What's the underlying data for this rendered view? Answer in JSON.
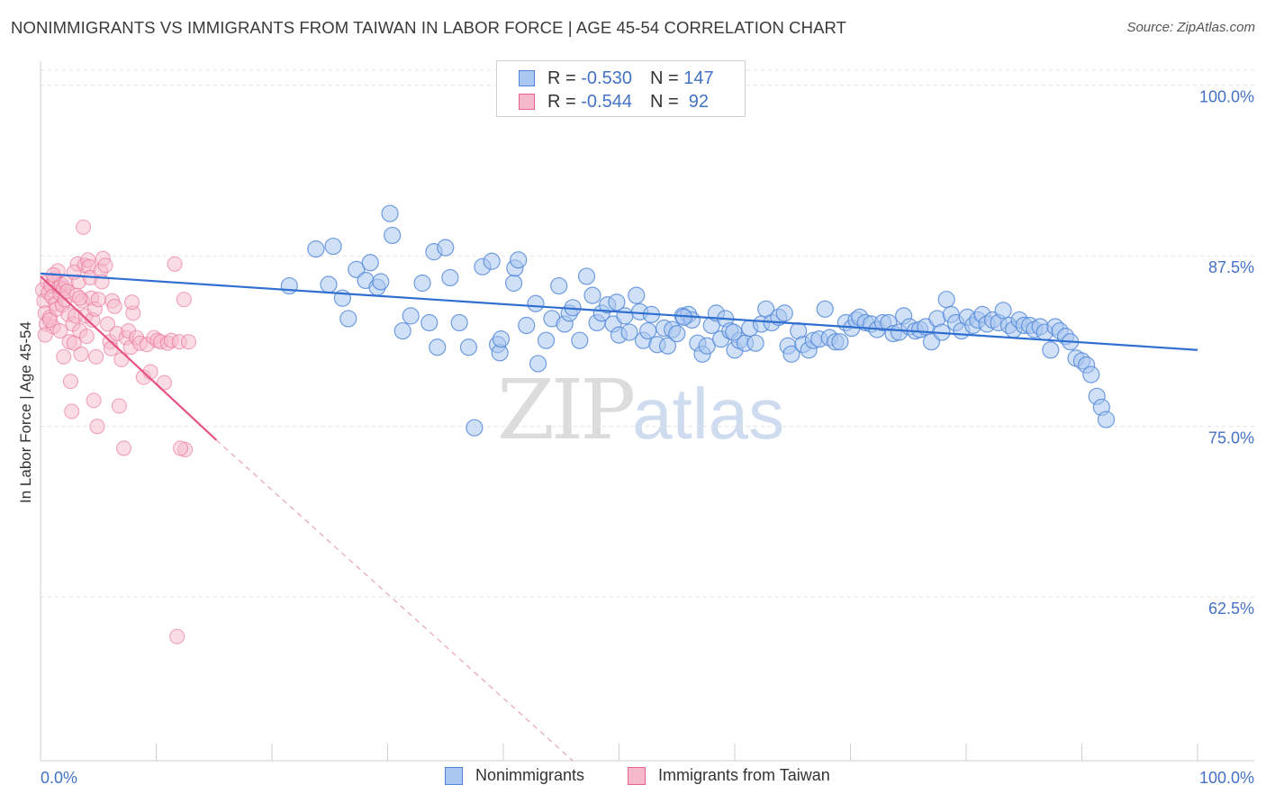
{
  "title": "NONIMMIGRANTS VS IMMIGRANTS FROM TAIWAN IN LABOR FORCE | AGE 45-54 CORRELATION CHART",
  "source": "Source: ZipAtlas.com",
  "watermark": {
    "zip": "ZIP",
    "atlas": "atlas"
  },
  "legend": {
    "rows": [
      {
        "r_label": "R = ",
        "r_value": "-0.530",
        "n_label": "N = ",
        "n_value": "147"
      },
      {
        "r_label": "R = ",
        "r_value": "-0.544",
        "n_label": "N = ",
        "n_value": " 92"
      }
    ]
  },
  "bottom_legend": {
    "series1": "Nonimmigrants",
    "series2": "Immigrants from Taiwan"
  },
  "chart_data": {
    "type": "scatter",
    "ylabel": "In Labor Force | Age 45-54",
    "xlabel": "",
    "xlim": [
      0,
      100
    ],
    "ylim": [
      50.5,
      101.5
    ],
    "y_ticks": [
      {
        "value": 100.0,
        "label": "100.0%"
      },
      {
        "value": 87.5,
        "label": "87.5%"
      },
      {
        "value": 75.0,
        "label": "75.0%"
      },
      {
        "value": 62.5,
        "label": "62.5%"
      }
    ],
    "x_tick_labels": {
      "left": "0.0%",
      "right": "100.0%"
    },
    "colors": {
      "blue": "#4f86d9",
      "blue_fill": "#aac7ef",
      "pink": "#e8648e",
      "pink_fill": "#f6b9cc"
    },
    "series": [
      {
        "name": "Nonimmigrants",
        "color": "#4f86d9",
        "r": -0.53,
        "n": 147,
        "trend": {
          "x0": 0,
          "y0": 86.2,
          "x1": 100,
          "y1": 80.6
        },
        "points": [
          [
            21.5,
            85.3
          ],
          [
            23.8,
            88.0
          ],
          [
            25.3,
            88.2
          ],
          [
            24.9,
            85.4
          ],
          [
            26.1,
            84.4
          ],
          [
            26.6,
            82.9
          ],
          [
            27.3,
            86.5
          ],
          [
            28.1,
            85.7
          ],
          [
            28.5,
            87.0
          ],
          [
            29.1,
            85.2
          ],
          [
            29.4,
            85.6
          ],
          [
            30.2,
            90.6
          ],
          [
            30.4,
            89.0
          ],
          [
            31.3,
            82.0
          ],
          [
            32.0,
            83.1
          ],
          [
            33.0,
            85.5
          ],
          [
            33.6,
            82.6
          ],
          [
            34.0,
            87.8
          ],
          [
            34.3,
            80.8
          ],
          [
            35.0,
            88.1
          ],
          [
            35.4,
            85.9
          ],
          [
            37.0,
            80.8
          ],
          [
            37.5,
            74.9
          ],
          [
            38.2,
            86.7
          ],
          [
            39.0,
            87.1
          ],
          [
            39.5,
            81.0
          ],
          [
            39.7,
            80.4
          ],
          [
            39.8,
            81.4
          ],
          [
            40.9,
            85.5
          ],
          [
            41.0,
            86.6
          ],
          [
            41.3,
            87.2
          ],
          [
            42.0,
            82.4
          ],
          [
            43.0,
            79.6
          ],
          [
            43.7,
            81.3
          ],
          [
            44.2,
            82.9
          ],
          [
            44.8,
            85.3
          ],
          [
            45.3,
            82.5
          ],
          [
            45.7,
            83.3
          ],
          [
            46.0,
            83.7
          ],
          [
            46.6,
            81.3
          ],
          [
            47.2,
            86.0
          ],
          [
            47.7,
            84.6
          ],
          [
            48.1,
            82.6
          ],
          [
            48.5,
            83.3
          ],
          [
            49.0,
            83.9
          ],
          [
            49.5,
            82.5
          ],
          [
            50.0,
            81.7
          ],
          [
            50.5,
            83.1
          ],
          [
            50.9,
            81.9
          ],
          [
            51.5,
            84.6
          ],
          [
            51.8,
            83.4
          ],
          [
            52.1,
            81.3
          ],
          [
            52.5,
            82.0
          ],
          [
            52.8,
            83.2
          ],
          [
            53.3,
            81.0
          ],
          [
            53.9,
            82.2
          ],
          [
            54.2,
            80.9
          ],
          [
            54.6,
            82.1
          ],
          [
            55.0,
            81.8
          ],
          [
            55.5,
            83.1
          ],
          [
            56.0,
            83.2
          ],
          [
            56.3,
            82.8
          ],
          [
            56.8,
            81.1
          ],
          [
            57.2,
            80.3
          ],
          [
            57.6,
            80.9
          ],
          [
            58.0,
            82.4
          ],
          [
            58.4,
            83.3
          ],
          [
            58.8,
            81.4
          ],
          [
            59.2,
            82.9
          ],
          [
            59.6,
            82.0
          ],
          [
            60.0,
            80.6
          ],
          [
            60.4,
            81.3
          ],
          [
            60.9,
            81.1
          ],
          [
            61.3,
            82.2
          ],
          [
            61.8,
            81.1
          ],
          [
            62.3,
            82.5
          ],
          [
            62.7,
            83.6
          ],
          [
            63.2,
            82.6
          ],
          [
            63.8,
            83.0
          ],
          [
            64.3,
            83.3
          ],
          [
            64.6,
            80.9
          ],
          [
            64.9,
            80.3
          ],
          [
            65.5,
            82.0
          ],
          [
            65.9,
            81.0
          ],
          [
            66.4,
            80.6
          ],
          [
            66.8,
            81.3
          ],
          [
            67.3,
            81.4
          ],
          [
            67.8,
            83.6
          ],
          [
            68.2,
            81.5
          ],
          [
            68.7,
            81.2
          ],
          [
            69.1,
            81.2
          ],
          [
            69.6,
            82.6
          ],
          [
            70.1,
            82.2
          ],
          [
            70.5,
            82.8
          ],
          [
            70.8,
            83.0
          ],
          [
            71.3,
            82.6
          ],
          [
            71.8,
            82.5
          ],
          [
            72.3,
            82.1
          ],
          [
            72.8,
            82.6
          ],
          [
            73.3,
            82.6
          ],
          [
            73.7,
            81.8
          ],
          [
            74.2,
            81.9
          ],
          [
            74.6,
            83.1
          ],
          [
            75.1,
            82.3
          ],
          [
            75.6,
            82.0
          ],
          [
            76.0,
            82.1
          ],
          [
            76.5,
            82.3
          ],
          [
            77.0,
            81.2
          ],
          [
            77.5,
            82.9
          ],
          [
            77.9,
            81.9
          ],
          [
            78.3,
            84.3
          ],
          [
            78.7,
            83.2
          ],
          [
            79.1,
            82.6
          ],
          [
            79.6,
            82.0
          ],
          [
            80.1,
            83.0
          ],
          [
            80.6,
            82.4
          ],
          [
            81.0,
            82.8
          ],
          [
            81.4,
            83.2
          ],
          [
            81.8,
            82.5
          ],
          [
            82.3,
            82.8
          ],
          [
            82.8,
            82.6
          ],
          [
            83.2,
            83.5
          ],
          [
            83.7,
            82.4
          ],
          [
            84.1,
            82.1
          ],
          [
            84.6,
            82.8
          ],
          [
            85.0,
            82.4
          ],
          [
            85.5,
            82.4
          ],
          [
            85.9,
            82.1
          ],
          [
            86.4,
            82.3
          ],
          [
            86.8,
            81.9
          ],
          [
            87.3,
            80.6
          ],
          [
            87.7,
            82.3
          ],
          [
            88.1,
            82.0
          ],
          [
            88.6,
            81.6
          ],
          [
            89.0,
            81.2
          ],
          [
            89.5,
            80.0
          ],
          [
            90.0,
            79.8
          ],
          [
            90.4,
            79.5
          ],
          [
            90.8,
            78.8
          ],
          [
            91.3,
            77.2
          ],
          [
            91.7,
            76.4
          ],
          [
            92.1,
            75.5
          ],
          [
            55.6,
            83.0
          ],
          [
            59.9,
            81.9
          ],
          [
            42.8,
            84.0
          ],
          [
            49.8,
            84.1
          ],
          [
            36.2,
            82.6
          ]
        ]
      },
      {
        "name": "Immigrants from Taiwan",
        "color": "#e8648e",
        "r": -0.544,
        "n": 92,
        "trend_solid": {
          "x0": 0,
          "y0": 86.0,
          "x1": 15.2,
          "y1": 74.0
        },
        "trend_dashed": {
          "x0": 15.2,
          "y0": 74.0,
          "x1": 46.0,
          "y1": 50.5
        },
        "points": [
          [
            0.2,
            85.0
          ],
          [
            0.3,
            84.2
          ],
          [
            0.4,
            83.3
          ],
          [
            0.5,
            82.5
          ],
          [
            0.6,
            85.6
          ],
          [
            0.7,
            84.8
          ],
          [
            0.8,
            83.0
          ],
          [
            0.9,
            85.3
          ],
          [
            1.0,
            84.5
          ],
          [
            1.1,
            82.3
          ],
          [
            1.2,
            85.8
          ],
          [
            1.3,
            84.0
          ],
          [
            1.4,
            83.6
          ],
          [
            1.5,
            86.4
          ],
          [
            1.6,
            85.2
          ],
          [
            1.7,
            84.7
          ],
          [
            1.8,
            85.4
          ],
          [
            1.9,
            83.9
          ],
          [
            2.0,
            85.1
          ],
          [
            2.1,
            84.3
          ],
          [
            2.2,
            85.5
          ],
          [
            2.3,
            84.9
          ],
          [
            2.4,
            83.2
          ],
          [
            2.5,
            81.2
          ],
          [
            2.6,
            78.3
          ],
          [
            2.7,
            76.1
          ],
          [
            2.8,
            82.5
          ],
          [
            2.9,
            81.1
          ],
          [
            3.0,
            83.1
          ],
          [
            3.1,
            84.6
          ],
          [
            3.2,
            86.9
          ],
          [
            3.3,
            85.6
          ],
          [
            3.4,
            82.0
          ],
          [
            3.5,
            80.3
          ],
          [
            3.6,
            84.2
          ],
          [
            3.7,
            89.6
          ],
          [
            3.8,
            86.8
          ],
          [
            3.9,
            83.1
          ],
          [
            4.0,
            81.6
          ],
          [
            4.1,
            87.2
          ],
          [
            4.2,
            86.7
          ],
          [
            4.3,
            85.9
          ],
          [
            4.4,
            84.4
          ],
          [
            4.5,
            82.8
          ],
          [
            4.6,
            76.9
          ],
          [
            4.7,
            83.6
          ],
          [
            4.8,
            80.1
          ],
          [
            4.9,
            75.0
          ],
          [
            5.0,
            84.3
          ],
          [
            5.2,
            86.4
          ],
          [
            5.4,
            87.3
          ],
          [
            5.6,
            86.8
          ],
          [
            5.8,
            82.5
          ],
          [
            6.0,
            81.2
          ],
          [
            6.2,
            84.2
          ],
          [
            6.4,
            83.8
          ],
          [
            6.6,
            81.8
          ],
          [
            6.8,
            76.5
          ],
          [
            7.0,
            79.9
          ],
          [
            7.2,
            73.4
          ],
          [
            7.4,
            81.5
          ],
          [
            7.6,
            82.0
          ],
          [
            7.8,
            80.8
          ],
          [
            8.0,
            83.3
          ],
          [
            8.3,
            81.5
          ],
          [
            8.6,
            81.1
          ],
          [
            8.9,
            78.6
          ],
          [
            9.2,
            81.0
          ],
          [
            9.5,
            79.0
          ],
          [
            9.8,
            81.5
          ],
          [
            10.1,
            81.3
          ],
          [
            10.4,
            81.2
          ],
          [
            10.7,
            78.2
          ],
          [
            11.0,
            81.1
          ],
          [
            11.3,
            81.3
          ],
          [
            11.6,
            86.9
          ],
          [
            12.0,
            81.2
          ],
          [
            12.4,
            84.3
          ],
          [
            12.8,
            81.2
          ],
          [
            12.5,
            73.3
          ],
          [
            12.1,
            73.4
          ],
          [
            11.8,
            59.6
          ],
          [
            0.4,
            81.7
          ],
          [
            0.8,
            82.8
          ],
          [
            1.1,
            86.1
          ],
          [
            1.7,
            82.0
          ],
          [
            2.0,
            80.1
          ],
          [
            2.9,
            86.3
          ],
          [
            3.4,
            84.4
          ],
          [
            5.3,
            85.6
          ],
          [
            6.1,
            80.7
          ],
          [
            7.9,
            84.1
          ]
        ]
      }
    ]
  }
}
